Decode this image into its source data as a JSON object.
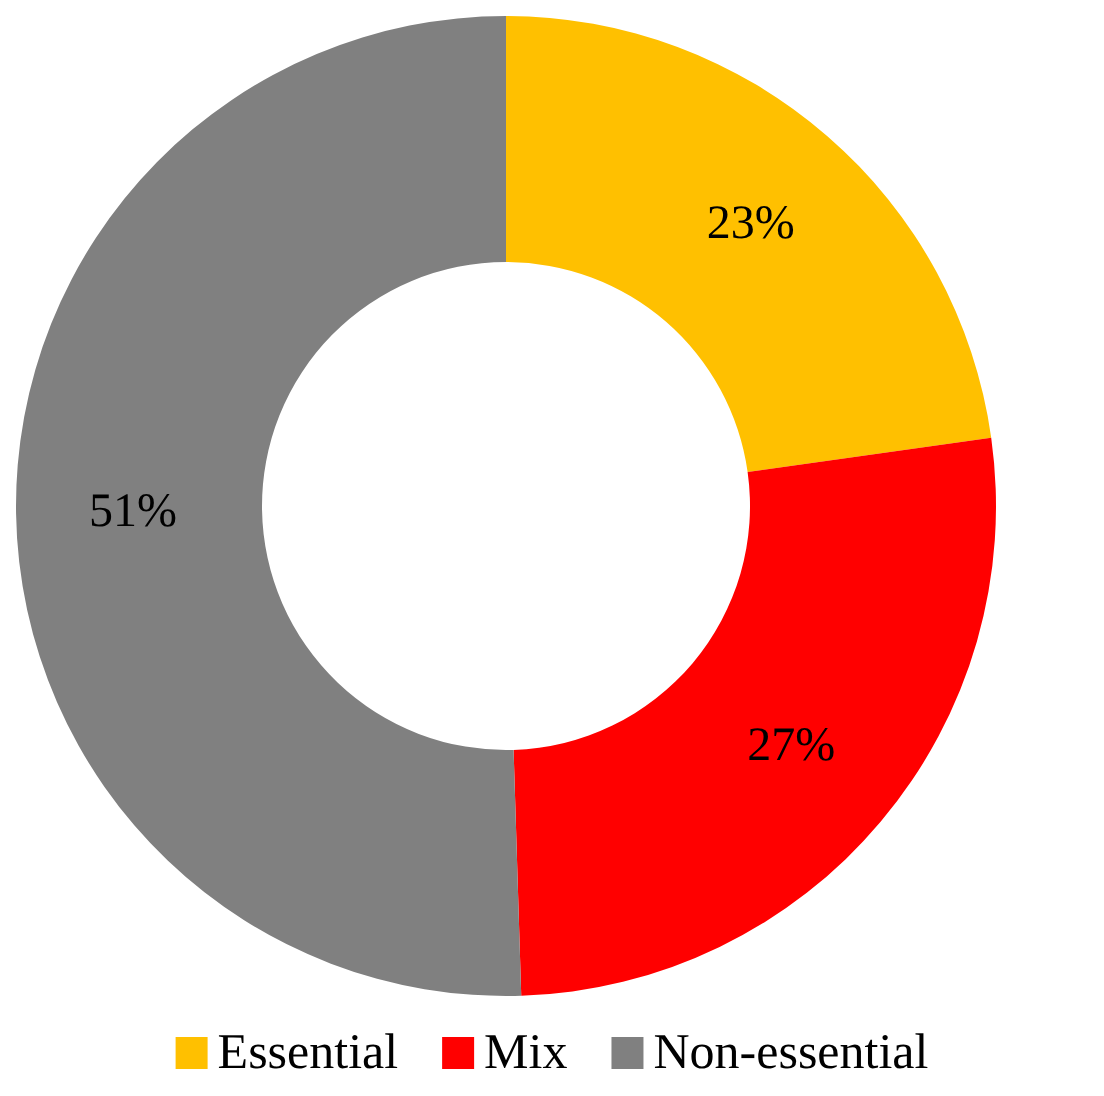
{
  "chart_data": {
    "type": "donut",
    "categories": [
      "Essential",
      "Mix",
      "Non-essential"
    ],
    "values": [
      23,
      27,
      51
    ],
    "colors": [
      "#ffc000",
      "#ff0000",
      "#808080"
    ],
    "value_labels": [
      "23%",
      "27%",
      "51%"
    ],
    "legend": "bottom"
  }
}
